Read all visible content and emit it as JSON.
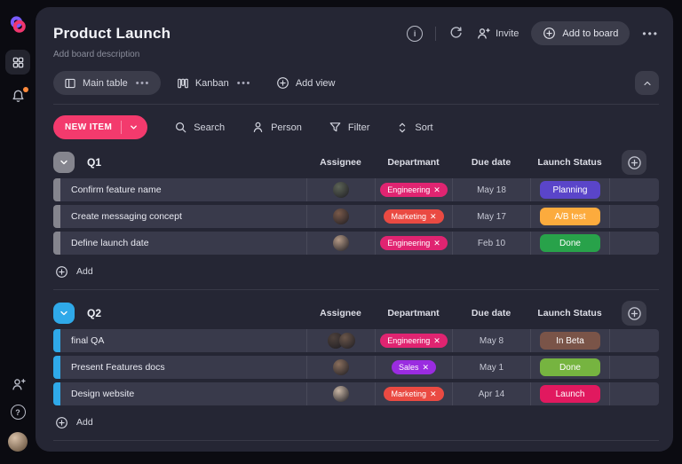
{
  "header": {
    "title": "Product Launch",
    "subtitle": "Add board description",
    "invite_label": "Invite",
    "add_to_board_label": "Add to board"
  },
  "views": {
    "tabs": [
      {
        "label": "Main table",
        "active": true
      },
      {
        "label": "Kanban",
        "active": false
      }
    ],
    "add_view_label": "Add view"
  },
  "toolbar": {
    "new_item_label": "NEW ITEM",
    "new_item_color": "#f33a6d",
    "search_label": "Search",
    "person_label": "Person",
    "filter_label": "Filter",
    "sort_label": "Sort"
  },
  "sidebar": {
    "logo_purple": "#7a5cff",
    "logo_pink": "#f0366e",
    "notification_dot_color": "#ff8a3c"
  },
  "table": {
    "columns": [
      "Assignee",
      "Departmant",
      "Due date",
      "Launch Status"
    ],
    "add_label": "Add",
    "groups": [
      {
        "title": "Q1",
        "color": "#85858e",
        "rows": [
          {
            "name": "Confirm feature name",
            "avatars": [
              "#5d6457"
            ],
            "department": {
              "label": "Engineering",
              "color": "#e02471"
            },
            "due_date": "May 18",
            "status": {
              "label": "Planning",
              "color": "#5a45c9"
            }
          },
          {
            "name": "Create messaging concept",
            "avatars": [
              "#7a5a4a"
            ],
            "department": {
              "label": "Marketing",
              "color": "#ea4a42"
            },
            "due_date": "May 17",
            "status": {
              "label": "A/B test",
              "color": "#fcab3d"
            }
          },
          {
            "name": "Define launch date",
            "avatars": [
              "#b59a86"
            ],
            "department": {
              "label": "Engineering",
              "color": "#e02471"
            },
            "due_date": "Feb 10",
            "status": {
              "label": "Done",
              "color": "#28a24a"
            }
          }
        ]
      },
      {
        "title": "Q2",
        "color": "#2fa9e9",
        "rows": [
          {
            "name": "final QA",
            "avatars": [
              "#4f423c",
              "#6a564a"
            ],
            "department": {
              "label": "Engineering",
              "color": "#e02471"
            },
            "due_date": "May 8",
            "status": {
              "label": "In Beta",
              "color": "#7a5448"
            }
          },
          {
            "name": "Present Features docs",
            "avatars": [
              "#8a6f5d"
            ],
            "department": {
              "label": "Sales",
              "color": "#9a2ce0"
            },
            "due_date": "May 1",
            "status": {
              "label": "Done",
              "color": "#76b440"
            }
          },
          {
            "name": "Design website",
            "avatars": [
              "#c9b6a5"
            ],
            "department": {
              "label": "Marketing",
              "color": "#ea4a42"
            },
            "due_date": "Apr 14",
            "status": {
              "label": "Launch",
              "color": "#e1195f"
            }
          }
        ]
      }
    ]
  }
}
